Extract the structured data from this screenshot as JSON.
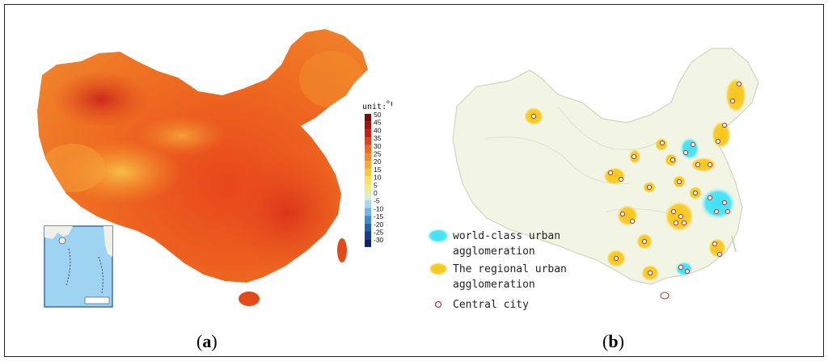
{
  "panel_a": {
    "caption_letter": "a",
    "unit_label": "unit:",
    "unit_symbol": "°C",
    "scale": {
      "ticks": [
        "50",
        "45",
        "40",
        "35",
        "30",
        "25",
        "20",
        "15",
        "10",
        "5",
        "0",
        "-5",
        "-10",
        "-15",
        "-20",
        "-25",
        "-30"
      ],
      "colors": [
        "#7a0c0c",
        "#a3120f",
        "#c81e14",
        "#e0401a",
        "#ee6a20",
        "#f38a26",
        "#f8ab30",
        "#fbc93c",
        "#fde35a",
        "#f0ec8a",
        "#d8ecd6",
        "#a8d8ee",
        "#6fb6e2",
        "#3d8ccc",
        "#2461b0",
        "#163f8f",
        "#0b2266"
      ]
    }
  },
  "panel_b": {
    "caption_letter": "b",
    "legend": [
      {
        "label_lines": [
          "world-class urban",
          "agglomeration"
        ],
        "color": "#3ee0f5",
        "icon": "cyan-blob-icon"
      },
      {
        "label_lines": [
          "The regional urban",
          "agglomeration"
        ],
        "color": "#f5c518",
        "icon": "yellow-blob-icon"
      },
      {
        "label_lines": [
          "Central city"
        ],
        "color": "#c0392b",
        "icon": "circle-icon"
      }
    ]
  }
}
